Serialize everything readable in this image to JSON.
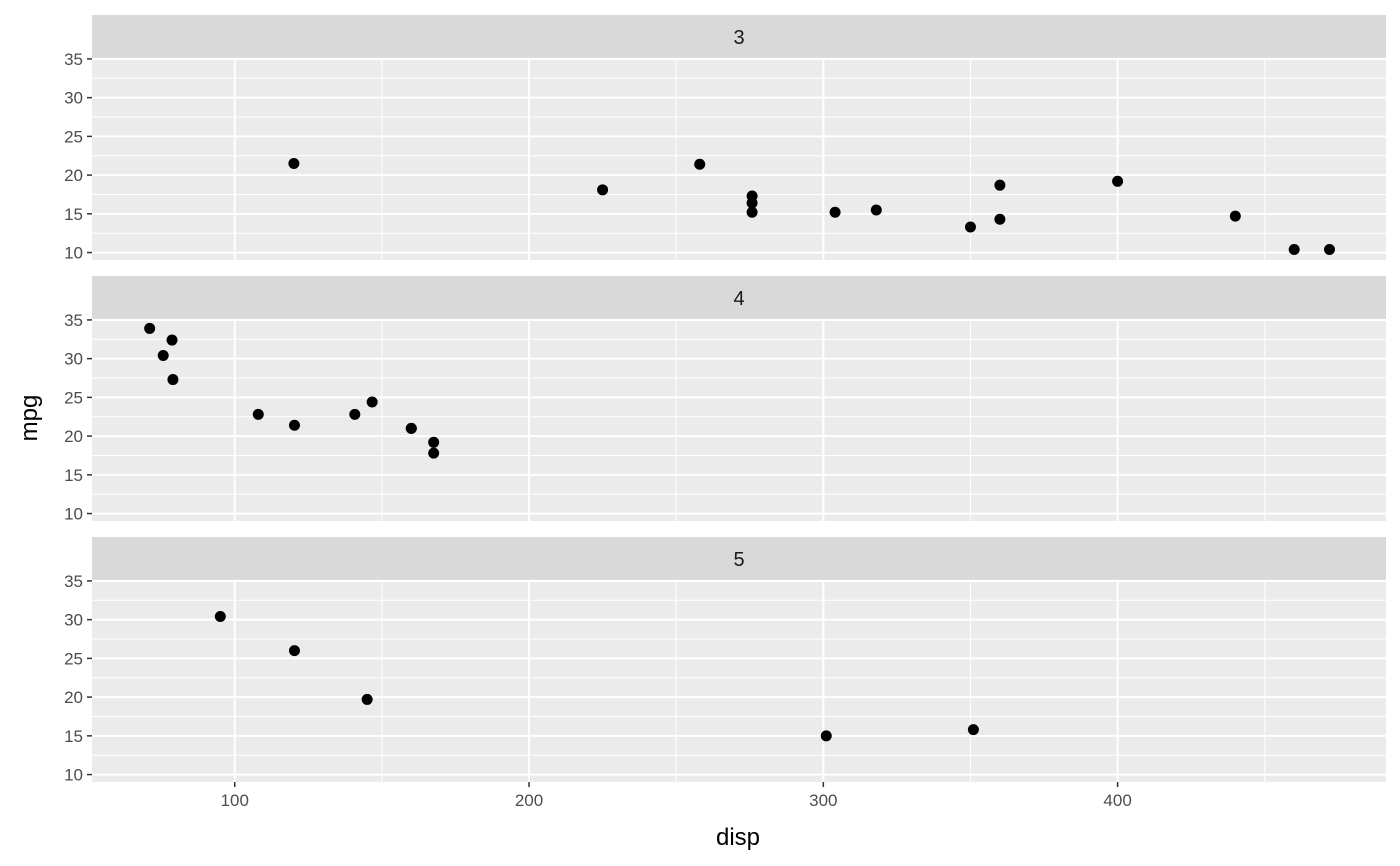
{
  "chart_data": {
    "type": "scatter",
    "xlabel": "disp",
    "ylabel": "mpg",
    "xlim": [
      51.5,
      491.2
    ],
    "ylim": [
      9.04,
      34.86
    ],
    "x_ticks": [
      100,
      200,
      300,
      400
    ],
    "y_ticks": [
      10,
      15,
      20,
      25,
      30,
      35
    ],
    "grid": true,
    "facets": [
      {
        "label": "3",
        "points": [
          {
            "x": 120.1,
            "y": 21.5
          },
          {
            "x": 225,
            "y": 18.1
          },
          {
            "x": 258,
            "y": 21.4
          },
          {
            "x": 275.8,
            "y": 17.3
          },
          {
            "x": 275.8,
            "y": 16.4
          },
          {
            "x": 275.8,
            "y": 15.2
          },
          {
            "x": 304,
            "y": 15.2
          },
          {
            "x": 318,
            "y": 15.5
          },
          {
            "x": 350,
            "y": 13.3
          },
          {
            "x": 360,
            "y": 18.7
          },
          {
            "x": 360,
            "y": 14.3
          },
          {
            "x": 400,
            "y": 19.2
          },
          {
            "x": 440,
            "y": 14.7
          },
          {
            "x": 460,
            "y": 10.4
          },
          {
            "x": 472,
            "y": 10.4
          }
        ]
      },
      {
        "label": "4",
        "points": [
          {
            "x": 71.1,
            "y": 33.9
          },
          {
            "x": 75.7,
            "y": 30.4
          },
          {
            "x": 78.7,
            "y": 32.4
          },
          {
            "x": 79,
            "y": 27.3
          },
          {
            "x": 108,
            "y": 22.8
          },
          {
            "x": 120.3,
            "y": 21.4
          },
          {
            "x": 140.8,
            "y": 22.8
          },
          {
            "x": 146.7,
            "y": 24.4
          },
          {
            "x": 160,
            "y": 21
          },
          {
            "x": 160,
            "y": 21
          },
          {
            "x": 167.6,
            "y": 19.2
          },
          {
            "x": 167.6,
            "y": 17.8
          }
        ]
      },
      {
        "label": "5",
        "points": [
          {
            "x": 95.1,
            "y": 30.4
          },
          {
            "x": 120.3,
            "y": 26
          },
          {
            "x": 145,
            "y": 19.7
          },
          {
            "x": 301,
            "y": 15
          },
          {
            "x": 351,
            "y": 15.8
          }
        ]
      }
    ]
  }
}
